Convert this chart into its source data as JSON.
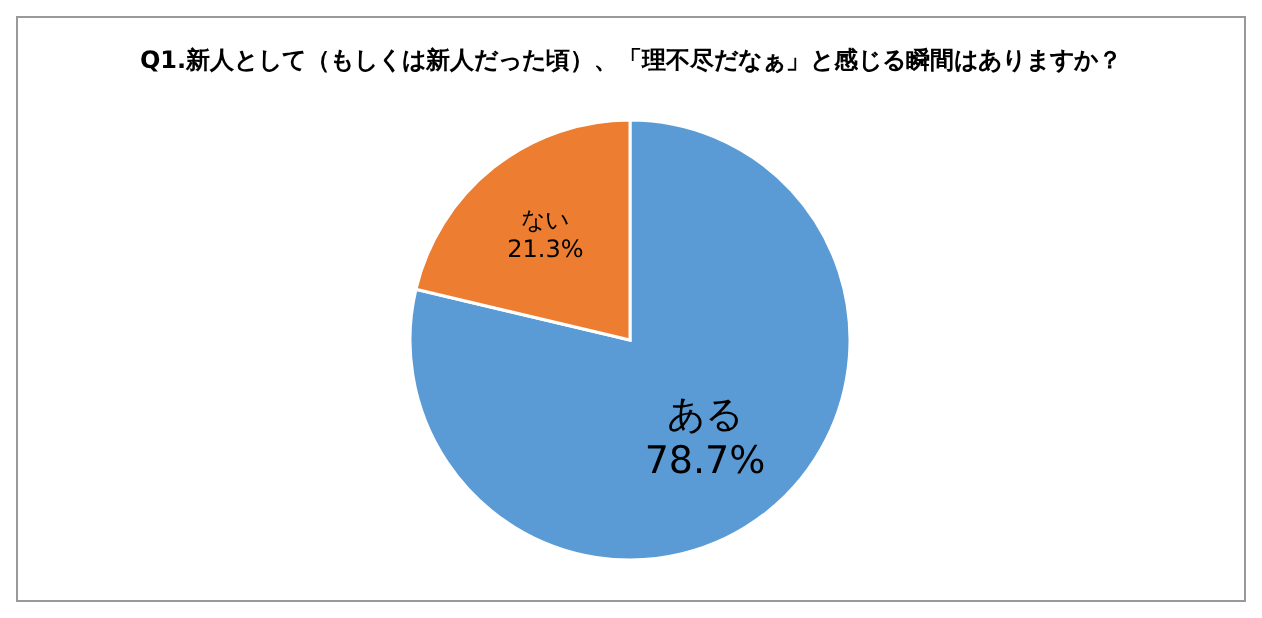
{
  "chart_data": {
    "type": "pie",
    "title": "Q1.新人として（もしくは新人だった頃）、「理不尽だなぁ」と感じる瞬間はありますか？",
    "categories": [
      "ある",
      "ない"
    ],
    "values": [
      78.7,
      21.3
    ],
    "colors": [
      "#5b9bd5",
      "#ed7d31"
    ],
    "value_labels": [
      "78.7%",
      "21.3%"
    ],
    "legend": false
  }
}
